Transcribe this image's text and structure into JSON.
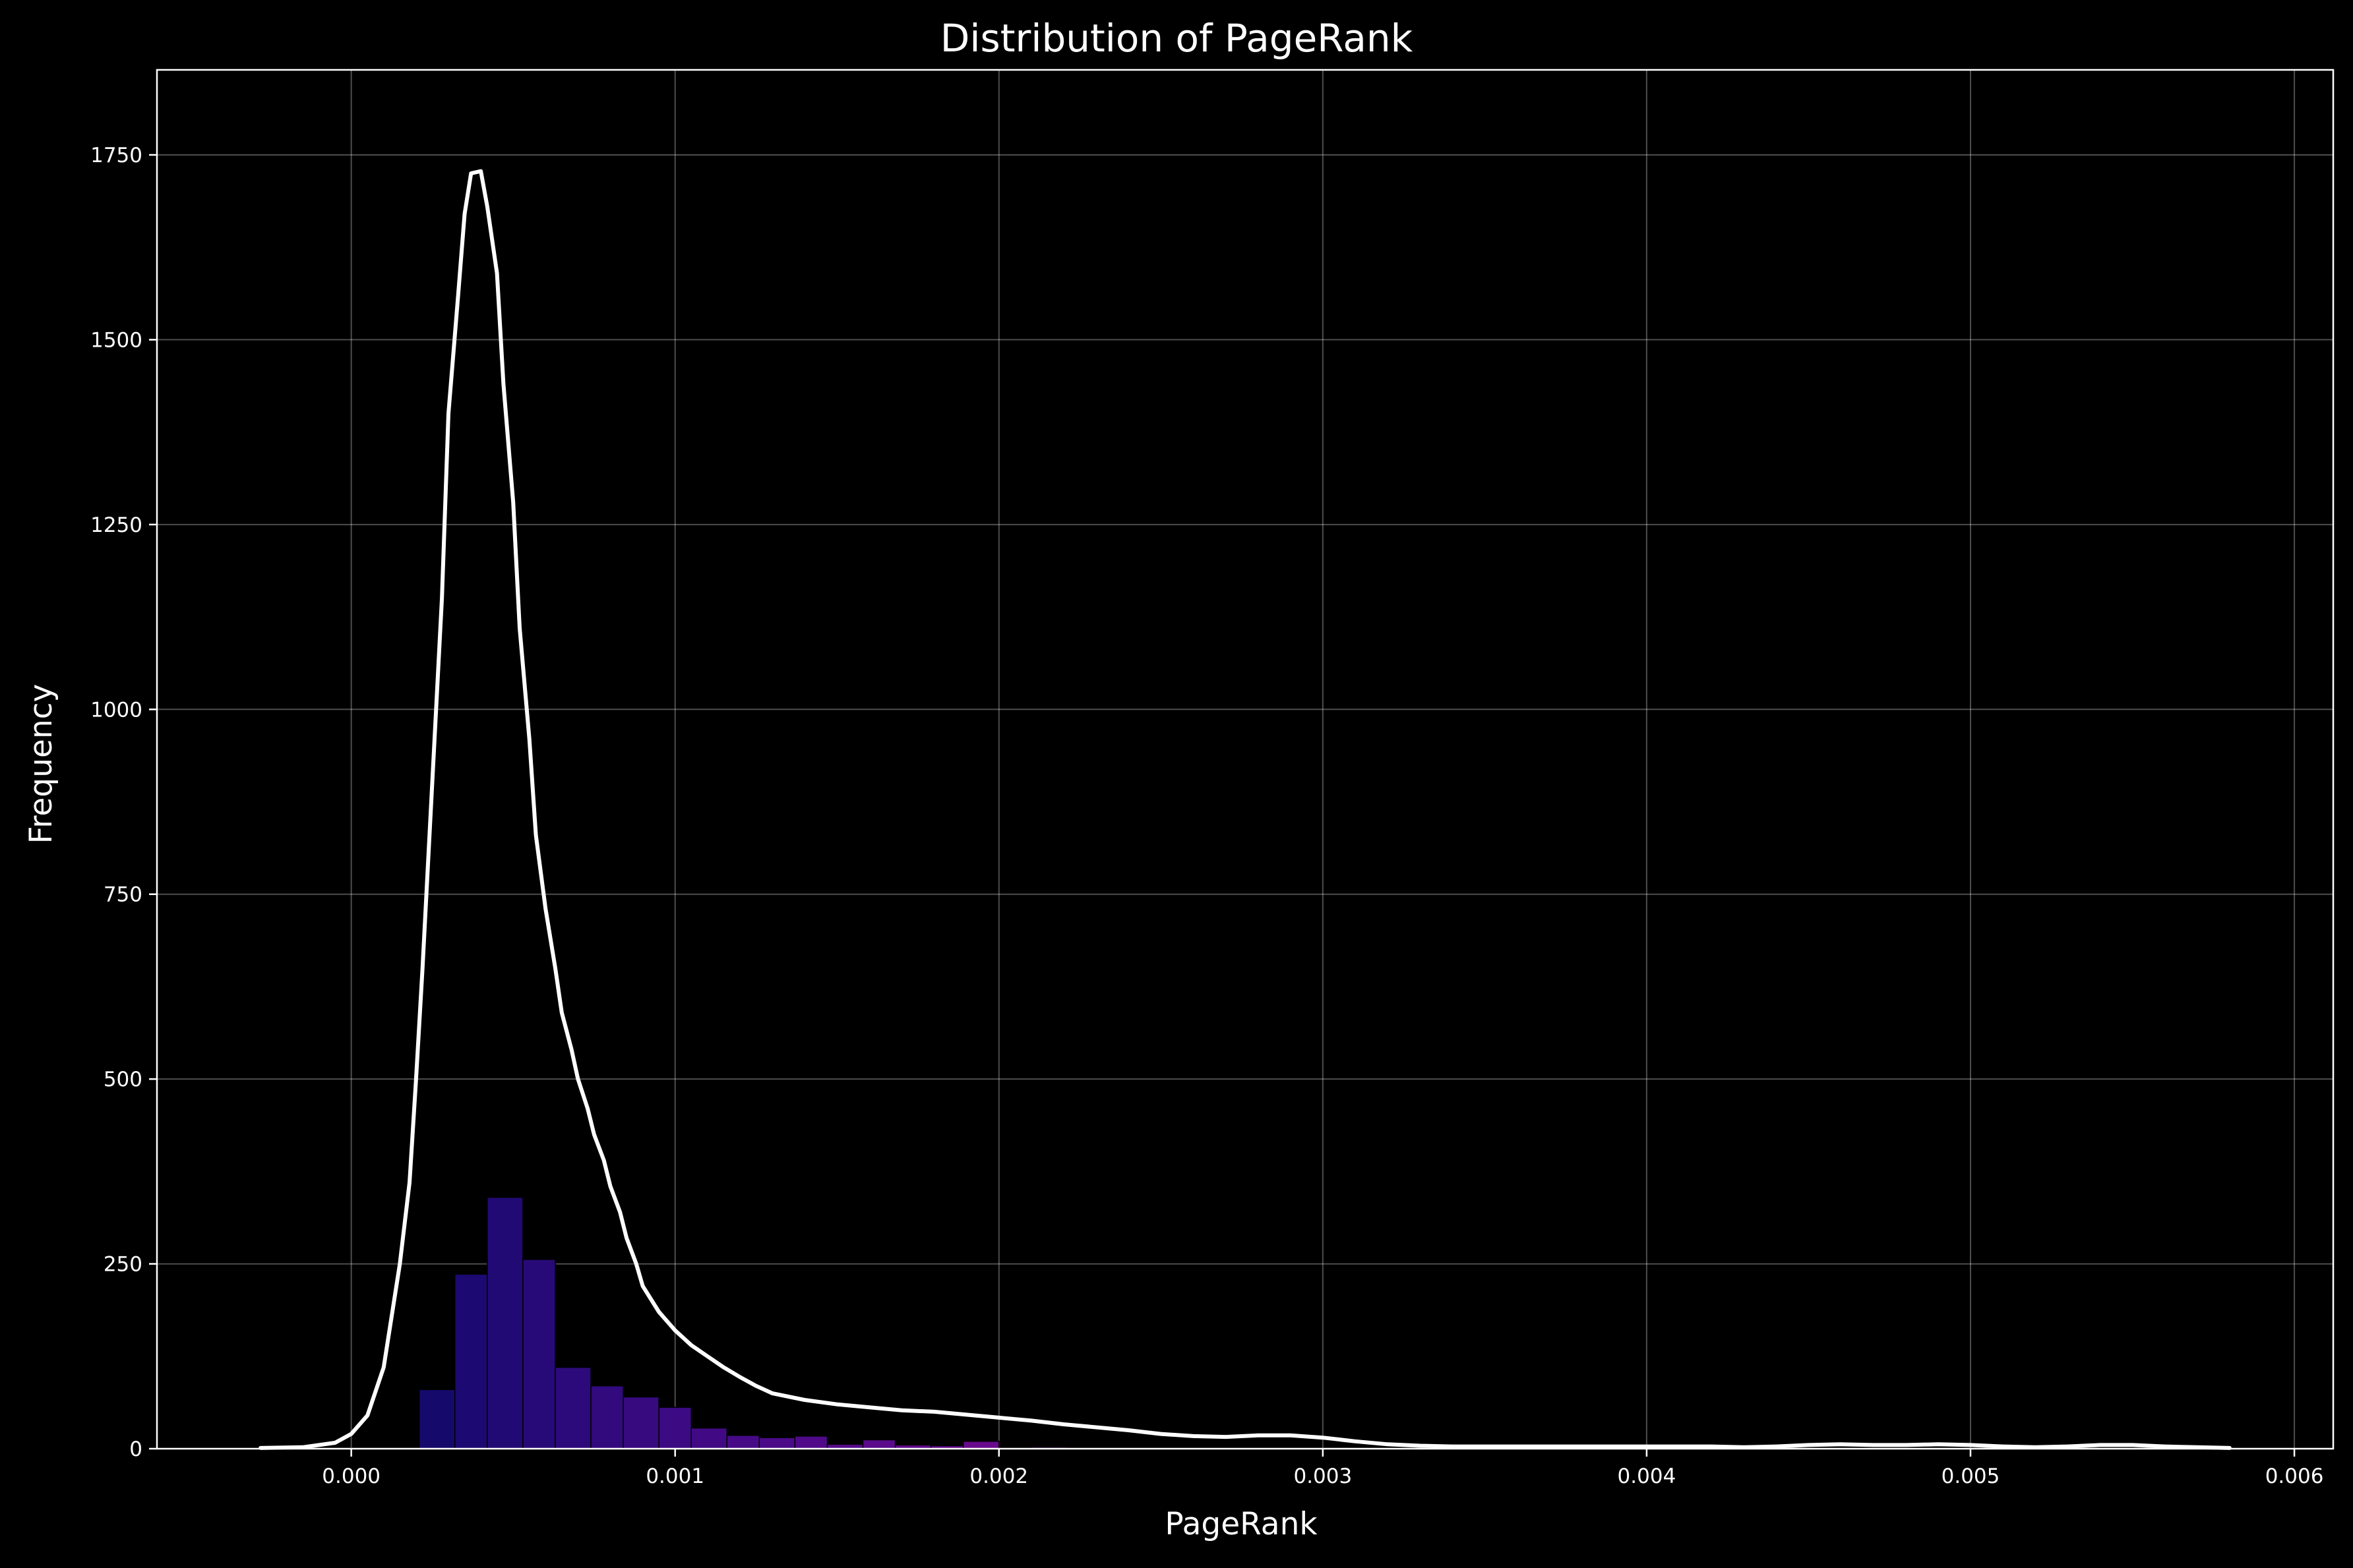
{
  "chart_data": {
    "type": "bar",
    "title": "Distribution of PageRank",
    "xlabel": "PageRank",
    "ylabel": "Frequency",
    "xlim": [
      -0.0006,
      0.00612
    ],
    "ylim": [
      0,
      1865
    ],
    "x_ticks": [
      {
        "value": 0.0,
        "label": "0.000"
      },
      {
        "value": 0.001,
        "label": "0.001"
      },
      {
        "value": 0.002,
        "label": "0.002"
      },
      {
        "value": 0.003,
        "label": "0.003"
      },
      {
        "value": 0.004,
        "label": "0.004"
      },
      {
        "value": 0.005,
        "label": "0.005"
      },
      {
        "value": 0.006,
        "label": "0.006"
      }
    ],
    "y_ticks": [
      {
        "value": 0,
        "label": "0"
      },
      {
        "value": 250,
        "label": "250"
      },
      {
        "value": 500,
        "label": "500"
      },
      {
        "value": 750,
        "label": "750"
      },
      {
        "value": 1000,
        "label": "1000"
      },
      {
        "value": 1250,
        "label": "1250"
      },
      {
        "value": 1500,
        "label": "1500"
      },
      {
        "value": 1750,
        "label": "1750"
      }
    ],
    "grid": true,
    "histogram": {
      "bin_edges": [
        0.00021,
        0.00032,
        0.00042,
        0.00053,
        0.00063,
        0.00074,
        0.00084,
        0.00095,
        0.00105,
        0.00116,
        0.00126,
        0.00137,
        0.00147,
        0.00158,
        0.00168,
        0.00179,
        0.00189,
        0.002,
        0.0021,
        0.00221
      ],
      "counts": [
        80,
        236,
        340,
        256,
        110,
        85,
        70,
        56,
        28,
        18,
        15,
        17,
        6,
        12,
        5,
        4,
        10,
        0,
        2
      ],
      "colors": [
        "#150a6b",
        "#1c0a72",
        "#220a75",
        "#270a78",
        "#2d0a7b",
        "#320a7e",
        "#370a80",
        "#3c0a82",
        "#410a84",
        "#460a86",
        "#4b0a88",
        "#500a89",
        "#550a8a",
        "#5a0a8b",
        "#5f0a8c",
        "#640a8c",
        "#690a8c",
        "#6e0a8c",
        "#730a8c"
      ]
    },
    "density_curve": {
      "color": "#ffffff",
      "x": [
        -0.00028,
        -0.00015,
        -5e-05,
        0.0,
        5e-05,
        0.0001,
        0.00015,
        0.00018,
        0.0002,
        0.00022,
        0.00025,
        0.00028,
        0.0003,
        0.00033,
        0.00035,
        0.00037,
        0.0004,
        0.00042,
        0.00045,
        0.00047,
        0.0005,
        0.00052,
        0.00055,
        0.00057,
        0.0006,
        0.00063,
        0.00065,
        0.00068,
        0.0007,
        0.00073,
        0.00075,
        0.00078,
        0.0008,
        0.00083,
        0.00085,
        0.00088,
        0.0009,
        0.00095,
        0.001,
        0.00105,
        0.0011,
        0.00115,
        0.0012,
        0.00125,
        0.0013,
        0.0014,
        0.0015,
        0.0016,
        0.0017,
        0.0018,
        0.0019,
        0.002,
        0.0021,
        0.0022,
        0.0023,
        0.0024,
        0.0025,
        0.0026,
        0.0027,
        0.0028,
        0.0029,
        0.003,
        0.0031,
        0.0032,
        0.0033,
        0.0034,
        0.0035,
        0.0036,
        0.0037,
        0.0038,
        0.0039,
        0.004,
        0.0041,
        0.0042,
        0.0043,
        0.0044,
        0.0045,
        0.0046,
        0.0047,
        0.0048,
        0.0049,
        0.005,
        0.0051,
        0.0052,
        0.0053,
        0.0054,
        0.0055,
        0.0056,
        0.0057,
        0.0058
      ],
      "y": [
        1,
        2,
        8,
        20,
        45,
        110,
        250,
        360,
        500,
        650,
        900,
        1150,
        1400,
        1560,
        1670,
        1725,
        1728,
        1680,
        1590,
        1440,
        1280,
        1110,
        960,
        830,
        730,
        650,
        590,
        540,
        500,
        460,
        425,
        390,
        355,
        320,
        285,
        250,
        220,
        185,
        160,
        140,
        125,
        110,
        97,
        85,
        75,
        66,
        60,
        56,
        52,
        50,
        46,
        42,
        38,
        33,
        29,
        25,
        20,
        17,
        16,
        18,
        18,
        15,
        10,
        6,
        4,
        3,
        3,
        3,
        3,
        3,
        3,
        3,
        3,
        3,
        2,
        3,
        5,
        6,
        5,
        5,
        6,
        5,
        3,
        2,
        3,
        5,
        5,
        3,
        2,
        1
      ]
    }
  }
}
